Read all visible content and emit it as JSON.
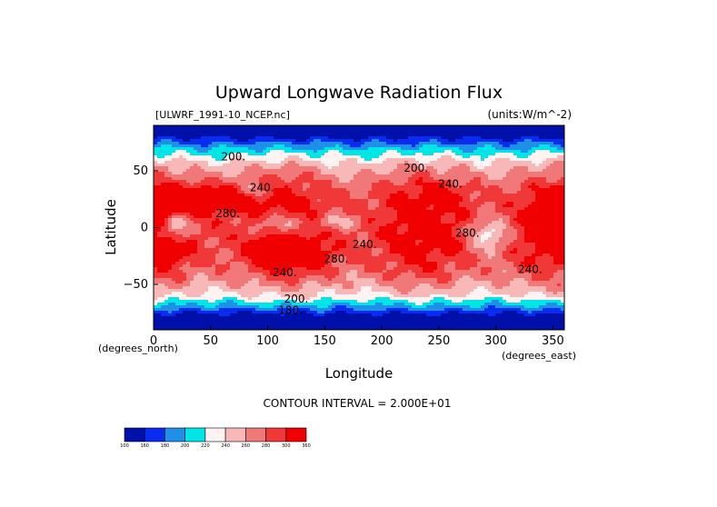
{
  "chart_data": {
    "type": "heatmap",
    "title": "Upward Longwave Radiation Flux",
    "file_label": "[ULWRF_1991-10_NCEP.nc]",
    "units_label": "(units:W/m^-2)",
    "xlabel": "Longitude",
    "ylabel": "Latitude",
    "x_unit_label": "(degrees_east)",
    "y_unit_label": "(degrees_north)",
    "xlim": [
      0,
      360
    ],
    "ylim": [
      -90,
      90
    ],
    "x_ticks": [
      0,
      50,
      100,
      150,
      200,
      250,
      300,
      350
    ],
    "y_ticks": [
      -50,
      0,
      50
    ],
    "contour_interval_label": "CONTOUR INTERVAL = 2.000E+01",
    "colorbar": {
      "levels": [
        100,
        160,
        180,
        200,
        220,
        240,
        260,
        280,
        300,
        360
      ],
      "colors": [
        "#0010a8",
        "#0a2cf0",
        "#1e90e8",
        "#00e6e6",
        "#fff2f2",
        "#f8b8b8",
        "#f07878",
        "#f03838",
        "#f00000"
      ]
    },
    "contour_labels": [
      {
        "text": "200.",
        "lon": 70,
        "lat": 62
      },
      {
        "text": "200.",
        "lon": 230,
        "lat": 52
      },
      {
        "text": "240.",
        "lon": 260,
        "lat": 38
      },
      {
        "text": "240.",
        "lon": 95,
        "lat": 35
      },
      {
        "text": "280.",
        "lon": 65,
        "lat": 12
      },
      {
        "text": "240.",
        "lon": 185,
        "lat": -15
      },
      {
        "text": "280.",
        "lon": 160,
        "lat": -28
      },
      {
        "text": "240.",
        "lon": 115,
        "lat": -40
      },
      {
        "text": "280.",
        "lon": 275,
        "lat": -5
      },
      {
        "text": "240.",
        "lon": 330,
        "lat": -37
      },
      {
        "text": "200.",
        "lon": 125,
        "lat": -63
      },
      {
        "text": "180.",
        "lon": 120,
        "lat": -73
      }
    ]
  }
}
